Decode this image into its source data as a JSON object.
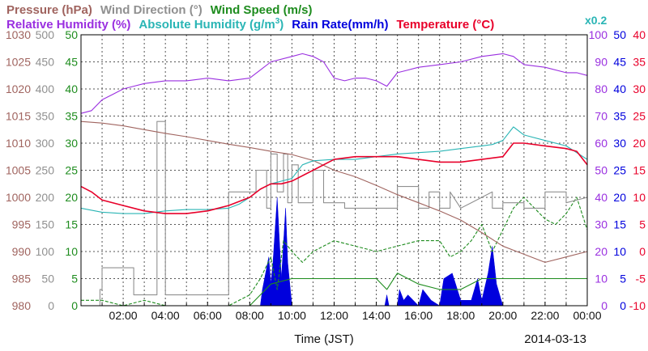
{
  "chart_data": {
    "type": "line",
    "date": "2014-03-13",
    "xlabel": "Time (JST)",
    "x_ticks": [
      "02:00",
      "04:00",
      "06:00",
      "08:00",
      "10:00",
      "12:00",
      "14:00",
      "16:00",
      "18:00",
      "20:00",
      "22:00",
      "00:00"
    ],
    "x_range_hours": [
      0,
      24
    ],
    "legend_top": [
      {
        "label": "Pressure (hPa)",
        "color": "#a0645f"
      },
      {
        "label": "Wind Direction (°)",
        "color": "#909090"
      },
      {
        "label": "Wind Speed (m/s)",
        "color": "#1e8c1e"
      }
    ],
    "legend_bottom": [
      {
        "label": "Relative Humidity (%)",
        "color": "#9a2fe0"
      },
      {
        "label": "Absolute Humidity (g/m",
        "sup": "3",
        "tail": ")",
        "color": "#2ab5b5"
      },
      {
        "label": "Rain Rate(mm/h)",
        "color": "#0000dd"
      },
      {
        "label": "Temperature (°C)",
        "color": "#e8002a"
      }
    ],
    "scale_note": {
      "label": "x0.2",
      "color": "#2ab5b5"
    },
    "axes_left": [
      {
        "name": "pressure",
        "color": "#a0645f",
        "ticks": [
          "1030",
          "1025",
          "1020",
          "1015",
          "1010",
          "1005",
          "1000",
          "995",
          "990",
          "985",
          "980"
        ]
      },
      {
        "name": "wind_direction",
        "color": "#909090",
        "ticks": [
          "500",
          "450",
          "400",
          "350",
          "300",
          "250",
          "200",
          "150",
          "100",
          "50",
          "0"
        ]
      },
      {
        "name": "wind_speed",
        "color": "#1e8c1e",
        "ticks": [
          "50",
          "45",
          "40",
          "35",
          "30",
          "25",
          "20",
          "15",
          "10",
          "5",
          "0"
        ]
      }
    ],
    "axes_right": [
      {
        "name": "humidity",
        "color": "#9a2fe0",
        "ticks": [
          "100",
          "90",
          "80",
          "70",
          "60",
          "50",
          "40",
          "30",
          "20",
          "10",
          "0"
        ]
      },
      {
        "name": "rain_rate",
        "color": "#0000dd",
        "ticks": [
          "50",
          "45",
          "40",
          "35",
          "30",
          "25",
          "20",
          "15",
          "10",
          "5",
          "0"
        ]
      },
      {
        "name": "temperature",
        "color": "#e8002a",
        "ticks": [
          "40",
          "35",
          "30",
          "25",
          "20",
          "15",
          "10",
          "5",
          "0",
          "-5",
          "-10"
        ]
      }
    ],
    "series": [
      {
        "name": "Relative Humidity",
        "unit": "%",
        "color": "#9a2fe0",
        "x": [
          0,
          0.5,
          1,
          1.5,
          2,
          2.5,
          3,
          4,
          5,
          6,
          7,
          8,
          8.5,
          9,
          10,
          10.5,
          11,
          11.5,
          12,
          12.5,
          13,
          13.5,
          14,
          14.5,
          15,
          15.5,
          16,
          17,
          18,
          19,
          20,
          20.5,
          21,
          22,
          23,
          23.5,
          24
        ],
        "y": [
          71,
          72,
          76,
          78,
          80,
          81,
          82,
          83,
          83,
          84,
          83,
          84,
          87,
          90,
          92,
          93,
          92,
          90,
          84,
          83,
          84,
          84,
          83,
          81,
          86,
          87,
          88,
          89,
          90,
          92,
          93,
          92,
          89,
          88,
          86,
          86,
          85
        ]
      },
      {
        "name": "Absolute Humidity (x0.2)",
        "unit": "g/m3",
        "color": "#2ab5b5",
        "x": [
          0,
          1,
          2,
          3,
          4,
          5,
          6,
          7,
          7.5,
          8,
          8.5,
          9,
          10,
          10.5,
          11,
          12,
          13,
          14,
          15,
          16,
          17,
          18,
          19,
          19.5,
          20,
          20.5,
          21,
          22,
          23,
          24
        ],
        "y": [
          36,
          34.5,
          34,
          34,
          35,
          35.5,
          35.5,
          36,
          37.5,
          40,
          43,
          45,
          47,
          52,
          53.5,
          54,
          54,
          55,
          56,
          56.5,
          57,
          58,
          59,
          59.5,
          61,
          66,
          63,
          61,
          59,
          54
        ]
      },
      {
        "name": "Temperature",
        "unit": "°C",
        "color": "#e8002a",
        "x": [
          0,
          0.5,
          1,
          2,
          3,
          4,
          5,
          6,
          7,
          8,
          8.5,
          9,
          9.5,
          10,
          11,
          12,
          13,
          14,
          15,
          16,
          17,
          18,
          19,
          20,
          20.5,
          21,
          22,
          23,
          23.5,
          24
        ],
        "y": [
          12,
          11,
          9.5,
          8.5,
          7.5,
          7,
          7,
          7.5,
          8.5,
          10,
          11.5,
          12.5,
          12.5,
          13,
          15,
          17,
          17.5,
          17.5,
          17.5,
          17,
          16.5,
          16.5,
          17,
          17.5,
          20,
          20,
          19.5,
          19,
          18.5,
          16
        ]
      },
      {
        "name": "Pressure",
        "unit": "hPa",
        "color": "#a0645f",
        "x": [
          0,
          1,
          2,
          3,
          4,
          5,
          6,
          7,
          8,
          9,
          10,
          11,
          12,
          13,
          14,
          15,
          16,
          17,
          18,
          19,
          20,
          21,
          22,
          23,
          24
        ],
        "y": [
          1014,
          1013.7,
          1013.2,
          1012.5,
          1011.8,
          1011.2,
          1010.5,
          1009.8,
          1009.2,
          1008.5,
          1007.9,
          1006.8,
          1005,
          1003.8,
          1002.2,
          1000.5,
          999,
          997.5,
          995.8,
          993.5,
          991,
          989.5,
          988,
          989,
          990
        ]
      },
      {
        "name": "Wind Direction",
        "unit": "°",
        "color": "#909090",
        "x": [
          0,
          0.9,
          0.9,
          1,
          1,
          2.5,
          2.5,
          3.6,
          3.6,
          4,
          4,
          5.5,
          5.5,
          7,
          7,
          8.3,
          8.3,
          8.8,
          8.8,
          9,
          9,
          9.3,
          9.3,
          9.6,
          9.6,
          9.8,
          9.8,
          10,
          10,
          10.3,
          10.3,
          10.6,
          10.6,
          11,
          11,
          11.5,
          11.5,
          12.5,
          12.5,
          14.5,
          14.5,
          15,
          15,
          16,
          16,
          16.5,
          16.5,
          17,
          17,
          17.5,
          17.5,
          18,
          18,
          18.5,
          18.5,
          19.5,
          19.5,
          20,
          20,
          21,
          21,
          22,
          22,
          23,
          23,
          24
        ],
        "y": [
          0,
          0,
          30,
          30,
          70,
          70,
          20,
          20,
          340,
          340,
          20,
          20,
          20,
          20,
          210,
          210,
          250,
          250,
          180,
          180,
          280,
          280,
          210,
          210,
          280,
          280,
          190,
          190,
          260,
          260,
          190,
          190,
          190,
          190,
          250,
          250,
          190,
          190,
          180,
          180,
          180,
          180,
          220,
          220,
          180,
          180,
          210,
          210,
          180,
          180,
          210,
          180,
          180,
          190,
          190,
          210,
          180,
          180,
          190,
          190,
          180,
          180,
          210,
          210,
          190,
          200
        ]
      },
      {
        "name": "Wind Speed",
        "unit": "m/s",
        "color": "#1e8c1e",
        "x": [
          0,
          1,
          2,
          3,
          4,
          5,
          6,
          7,
          8,
          8.5,
          9,
          10,
          11,
          12,
          13,
          14,
          14.5,
          15,
          16,
          17,
          18,
          19,
          20,
          21,
          22,
          23,
          24
        ],
        "y": [
          0,
          0,
          0,
          0,
          0,
          0,
          0,
          0,
          0,
          2,
          4,
          5,
          5,
          5,
          5,
          5,
          3,
          6,
          4,
          3,
          3,
          5,
          5,
          5,
          5,
          5,
          5
        ]
      },
      {
        "name": "Wind Speed (gust)",
        "unit": "m/s",
        "color": "#1e8c1e",
        "dashed": true,
        "x": [
          0,
          1,
          2,
          3,
          4,
          5,
          6,
          7,
          7.5,
          8,
          8.5,
          9,
          9.3,
          9.6,
          10,
          10.5,
          11,
          11.5,
          12,
          13,
          14,
          15,
          16,
          17,
          17.5,
          18,
          18.5,
          19,
          19.5,
          20,
          20.5,
          21,
          21.5,
          22,
          22.5,
          23,
          23.5,
          24
        ],
        "y": [
          1,
          1,
          0,
          1,
          0,
          0,
          0,
          0,
          1,
          2,
          5,
          9,
          3,
          12,
          10,
          8,
          10,
          11,
          12,
          11,
          10,
          11,
          12,
          12,
          9,
          10,
          12,
          15,
          10,
          14,
          18,
          20,
          18,
          16,
          15,
          17,
          20,
          14
        ]
      },
      {
        "name": "Rain Rate",
        "unit": "mm/h",
        "color": "#0000dd",
        "x": [
          0,
          8.5,
          8.6,
          8.9,
          9,
          9.1,
          9.3,
          9.5,
          9.7,
          9.8,
          10,
          10.5,
          14.4,
          14.5,
          14.6,
          15,
          15.1,
          15.3,
          15.5,
          16,
          16.2,
          16.6,
          17,
          17.2,
          17.6,
          18,
          18.2,
          18.5,
          18.8,
          19,
          19.3,
          19.5,
          19.7,
          20,
          24
        ],
        "y": [
          0,
          0,
          3,
          9,
          4,
          8,
          20,
          5,
          18,
          8,
          0,
          0,
          0,
          2,
          0,
          0,
          3,
          1,
          2,
          0,
          3,
          1,
          0,
          5,
          6,
          1,
          1,
          1,
          5,
          1,
          6,
          11,
          4,
          0,
          0
        ]
      }
    ]
  }
}
